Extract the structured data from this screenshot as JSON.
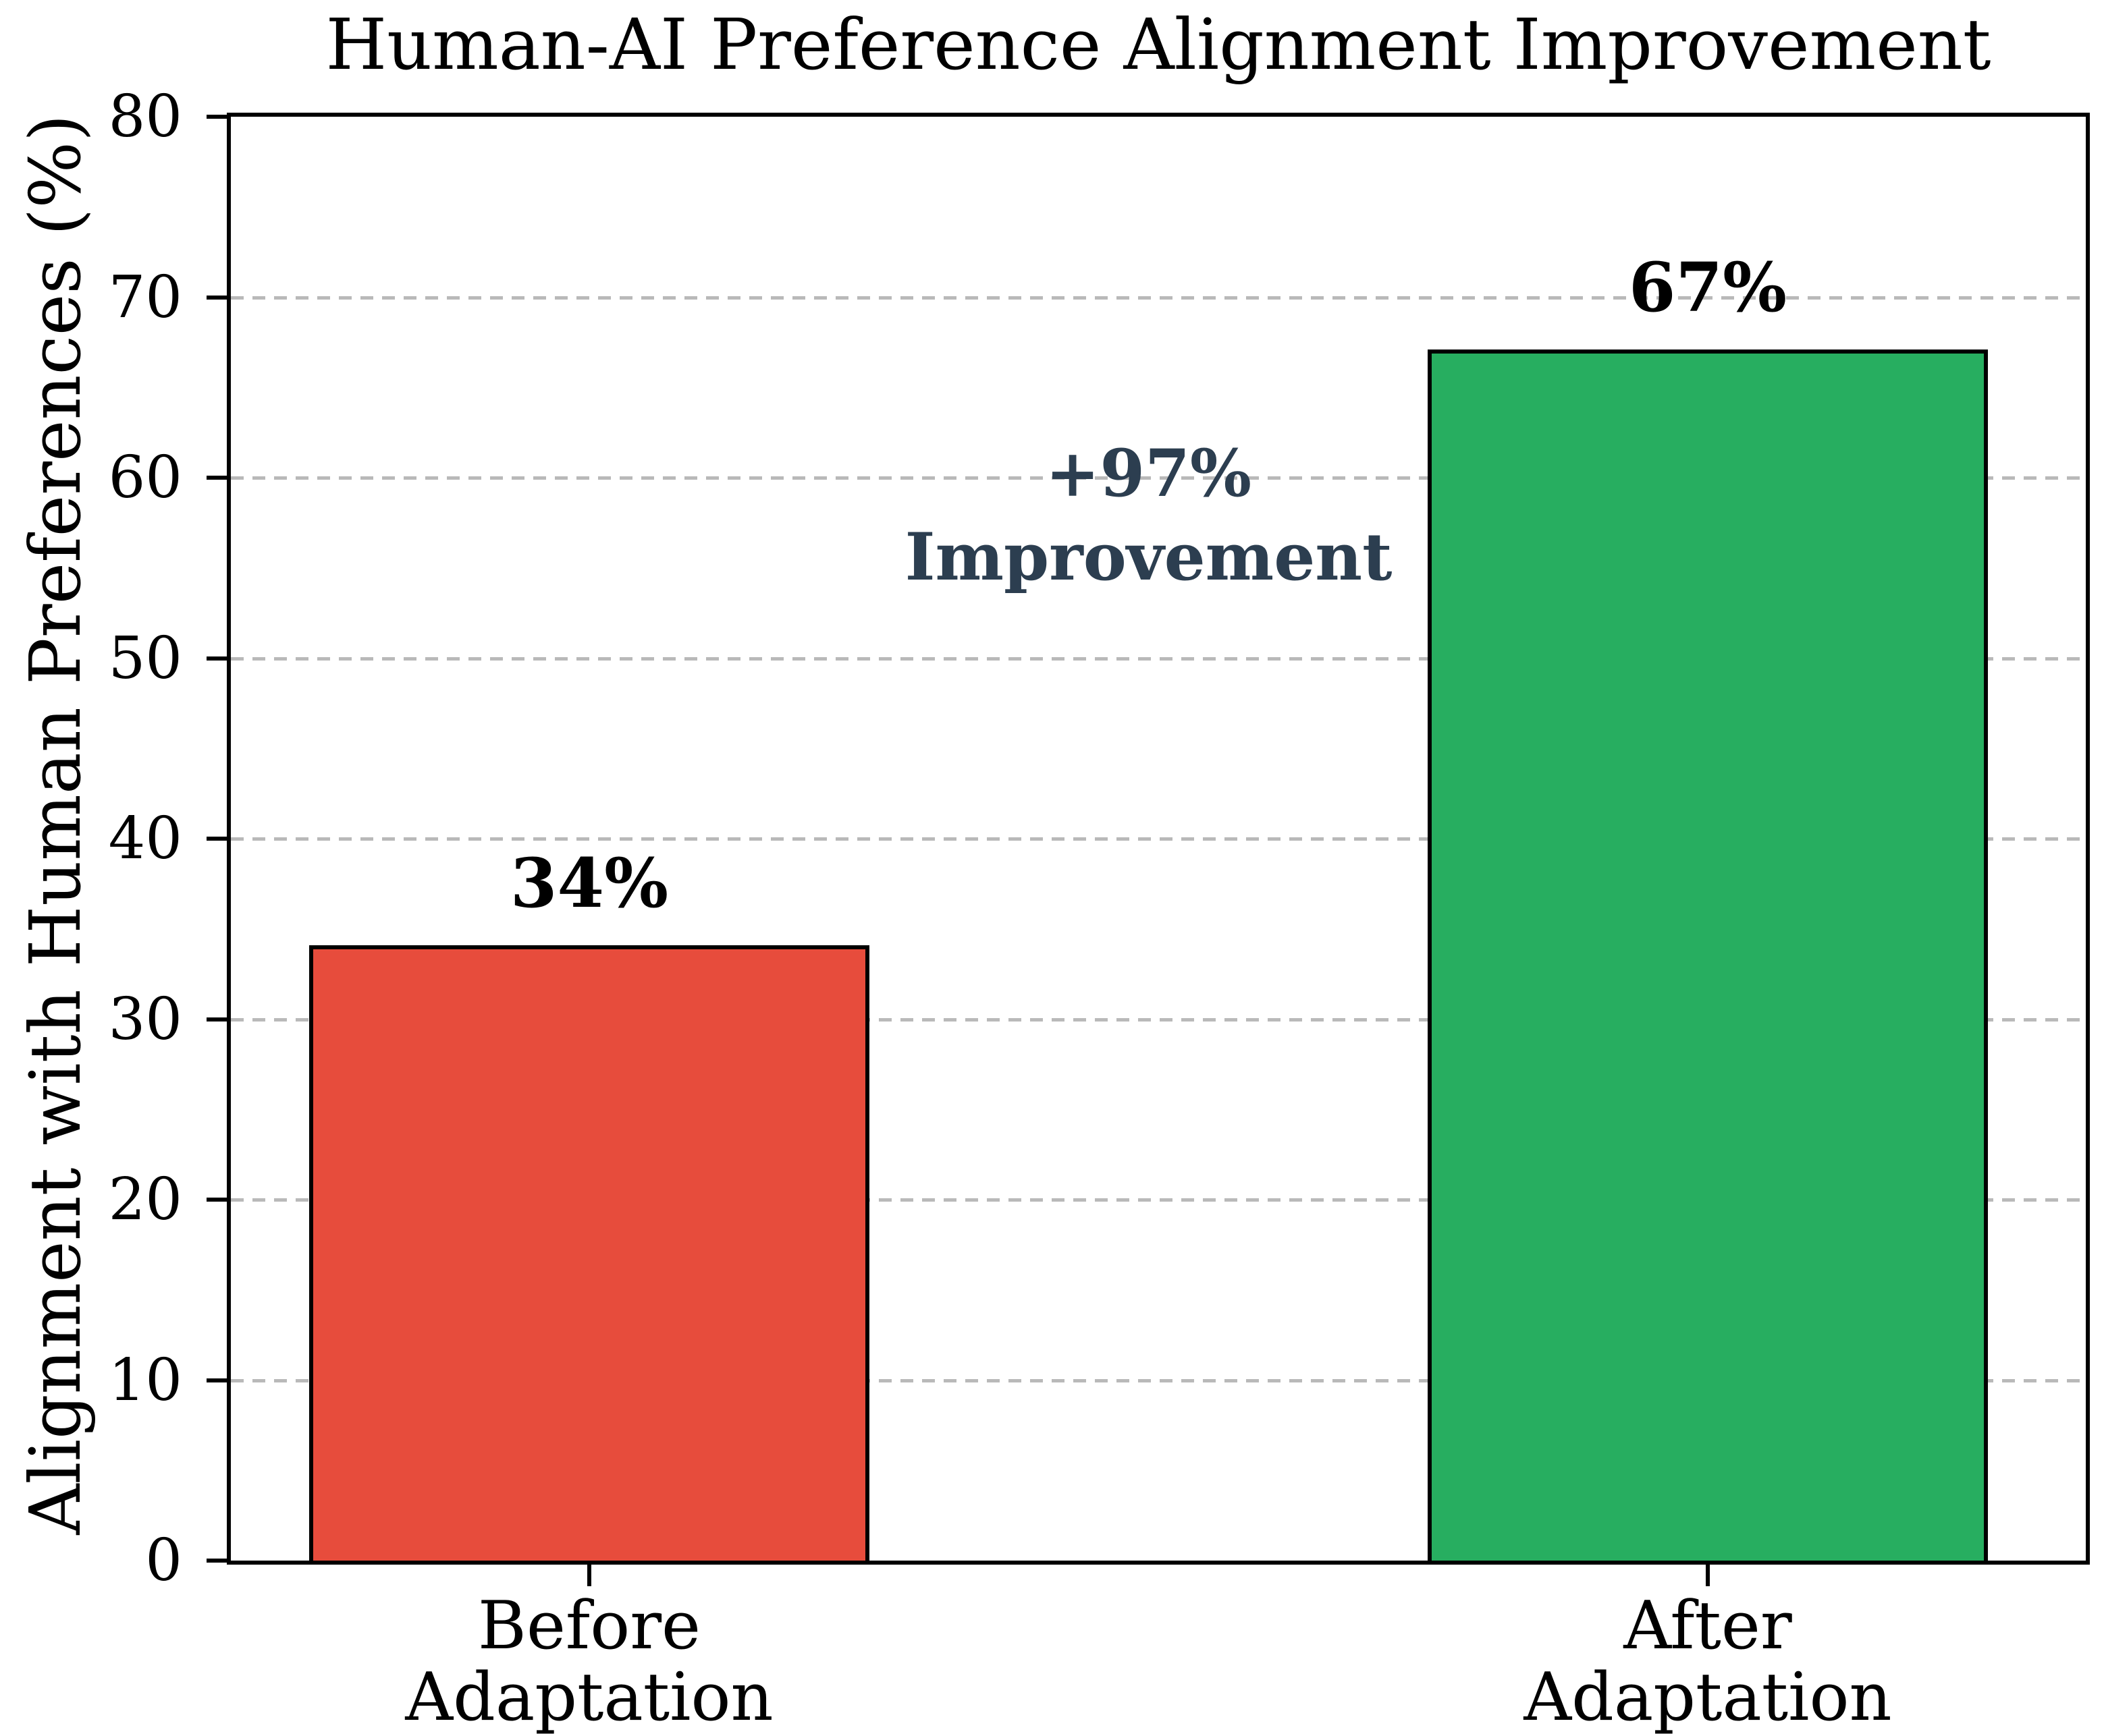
{
  "chart_data": {
    "type": "bar",
    "title": "Human-AI Preference Alignment Improvement",
    "ylabel": "Alignment with Human Preferences (%)",
    "xlabel": "",
    "categories": [
      "Before\nAdaptation",
      "After\nAdaptation"
    ],
    "values": [
      34,
      67
    ],
    "bar_value_labels": [
      "34%",
      "67%"
    ],
    "bar_colors": [
      "#e74c3c",
      "#27ae60"
    ],
    "bar_edge_color": "#000000",
    "ylim": [
      0,
      80
    ],
    "yticks": [
      0,
      10,
      20,
      30,
      40,
      50,
      60,
      70,
      80
    ],
    "grid": {
      "axis": "y",
      "style": "dashed",
      "color": "#b9b9b9"
    },
    "annotation": {
      "lines": [
        "+97%",
        "Improvement"
      ],
      "color": "#2c3e50"
    }
  }
}
